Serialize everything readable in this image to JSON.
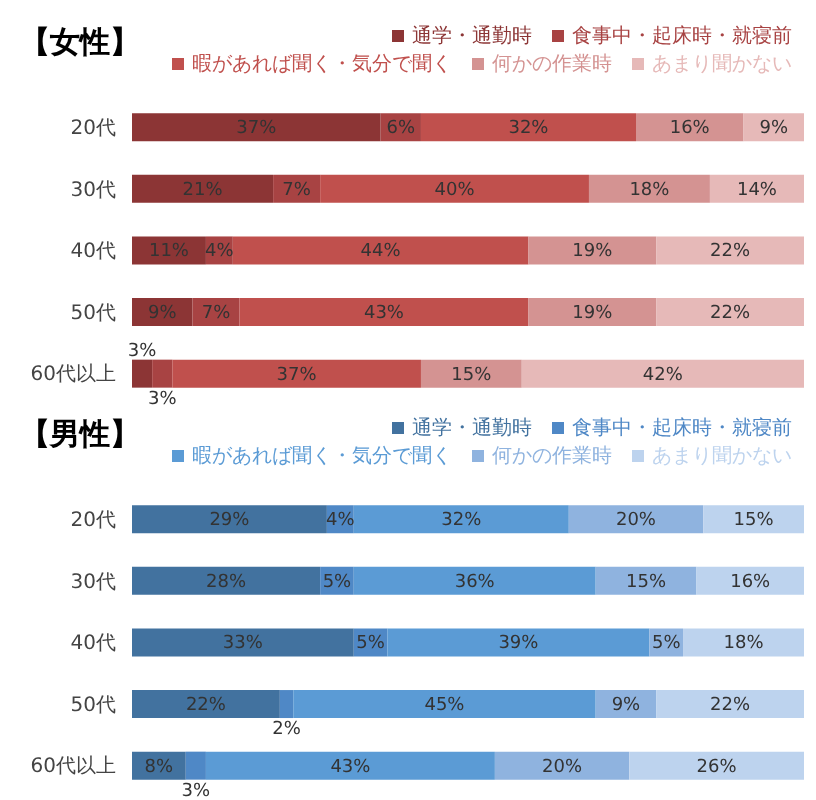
{
  "chart_data": [
    {
      "type": "bar",
      "orientation": "horizontal",
      "stacked": true,
      "title": "【女性】",
      "categories": [
        "20代",
        "30代",
        "40代",
        "50代",
        "60代以上"
      ],
      "xlim": [
        0,
        100
      ],
      "tick_labels": "y",
      "legend": "top",
      "series": [
        {
          "name": "通学・通勤時",
          "color": "#8c3535",
          "values": [
            37,
            21,
            11,
            9,
            3
          ],
          "value_labels": [
            "37%",
            "21%",
            "11%",
            "9%",
            "3%"
          ]
        },
        {
          "name": "食事中・起床時・就寝前",
          "color": "#a84343",
          "values": [
            6,
            7,
            4,
            7,
            3
          ],
          "value_labels": [
            "6%",
            "7%",
            "4%",
            "7%",
            "3%"
          ]
        },
        {
          "name": "暇があれば聞く・気分で聞く",
          "color": "#c0504d",
          "values": [
            32,
            40,
            44,
            43,
            37
          ],
          "value_labels": [
            "32%",
            "40%",
            "44%",
            "43%",
            "37%"
          ]
        },
        {
          "name": "何かの作業時",
          "color": "#d49392",
          "values": [
            16,
            18,
            19,
            19,
            15
          ],
          "value_labels": [
            "16%",
            "18%",
            "19%",
            "19%",
            "15%"
          ]
        },
        {
          "name": "あまり聞かない",
          "color": "#e6b9b8",
          "values": [
            9,
            14,
            22,
            22,
            42
          ],
          "value_labels": [
            "9%",
            "14%",
            "22%",
            "22%",
            "42%"
          ]
        }
      ]
    },
    {
      "type": "bar",
      "orientation": "horizontal",
      "stacked": true,
      "title": "【男性】",
      "categories": [
        "20代",
        "30代",
        "40代",
        "50代",
        "60代以上"
      ],
      "xlim": [
        0,
        100
      ],
      "tick_labels": "y",
      "legend": "top",
      "series": [
        {
          "name": "通学・通勤時",
          "color": "#42729f",
          "values": [
            29,
            28,
            33,
            22,
            8
          ],
          "value_labels": [
            "29%",
            "28%",
            "33%",
            "22%",
            "8%"
          ]
        },
        {
          "name": "食事中・起床時・就寝前",
          "color": "#4f88c6",
          "values": [
            4,
            5,
            5,
            2,
            3
          ],
          "value_labels": [
            "4%",
            "5%",
            "5%",
            "2%",
            "3%"
          ]
        },
        {
          "name": "暇があれば聞く・気分で聞く",
          "color": "#5b9bd5",
          "values": [
            32,
            36,
            39,
            45,
            43
          ],
          "value_labels": [
            "32%",
            "36%",
            "39%",
            "45%",
            "43%"
          ]
        },
        {
          "name": "何かの作業時",
          "color": "#8fb3df",
          "values": [
            20,
            15,
            5,
            9,
            20
          ],
          "value_labels": [
            "20%",
            "15%",
            "5%",
            "9%",
            "20%"
          ]
        },
        {
          "name": "あまり聞かない",
          "color": "#bdd3ee",
          "values": [
            15,
            16,
            18,
            22,
            26
          ],
          "value_labels": [
            "15%",
            "16%",
            "18%",
            "22%",
            "26%"
          ]
        }
      ]
    }
  ]
}
